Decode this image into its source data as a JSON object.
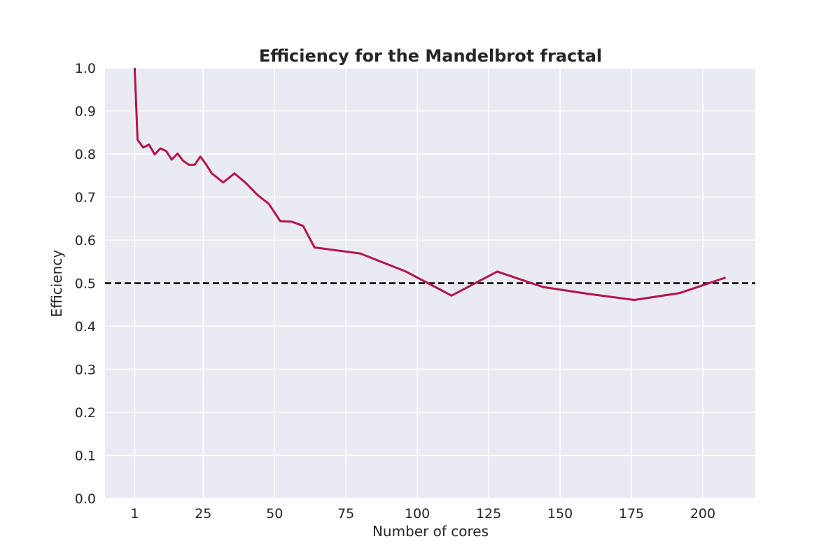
{
  "chart_data": {
    "type": "line",
    "title": "Efficiency for the Mandelbrot fractal",
    "xlabel": "Number of cores",
    "ylabel": "Efficiency",
    "xlim": [
      -9.4,
      218.4
    ],
    "ylim": [
      0.0,
      1.0
    ],
    "x_ticks": [
      1,
      25,
      50,
      75,
      100,
      125,
      150,
      175,
      200
    ],
    "y_ticks": [
      0.0,
      0.1,
      0.2,
      0.3,
      0.4,
      0.5,
      0.6,
      0.7,
      0.8,
      0.9,
      1.0
    ],
    "y_tick_labels": [
      "0.0",
      "0.1",
      "0.2",
      "0.3",
      "0.4",
      "0.5",
      "0.6",
      "0.7",
      "0.8",
      "0.9",
      "1.0"
    ],
    "grid": true,
    "background": "#eaeaf2",
    "series": [
      {
        "color": "#b5134f",
        "x": [
          1,
          2,
          4,
          6,
          8,
          10,
          12,
          14,
          16,
          18,
          20,
          22,
          24,
          26,
          28,
          32,
          36,
          40,
          44,
          48,
          52,
          56,
          60,
          64,
          80,
          96,
          112,
          128,
          144,
          160,
          176,
          192,
          208
        ],
        "values": [
          1.0,
          0.833,
          0.815,
          0.822,
          0.799,
          0.813,
          0.807,
          0.787,
          0.801,
          0.784,
          0.775,
          0.775,
          0.794,
          0.776,
          0.755,
          0.734,
          0.755,
          0.732,
          0.705,
          0.684,
          0.644,
          0.643,
          0.633,
          0.583,
          0.569,
          0.527,
          0.471,
          0.527,
          0.491,
          0.475,
          0.461,
          0.477,
          0.513
        ]
      }
    ],
    "reference_line": {
      "y": 0.5,
      "style": "dashed",
      "color": "#000000"
    }
  }
}
